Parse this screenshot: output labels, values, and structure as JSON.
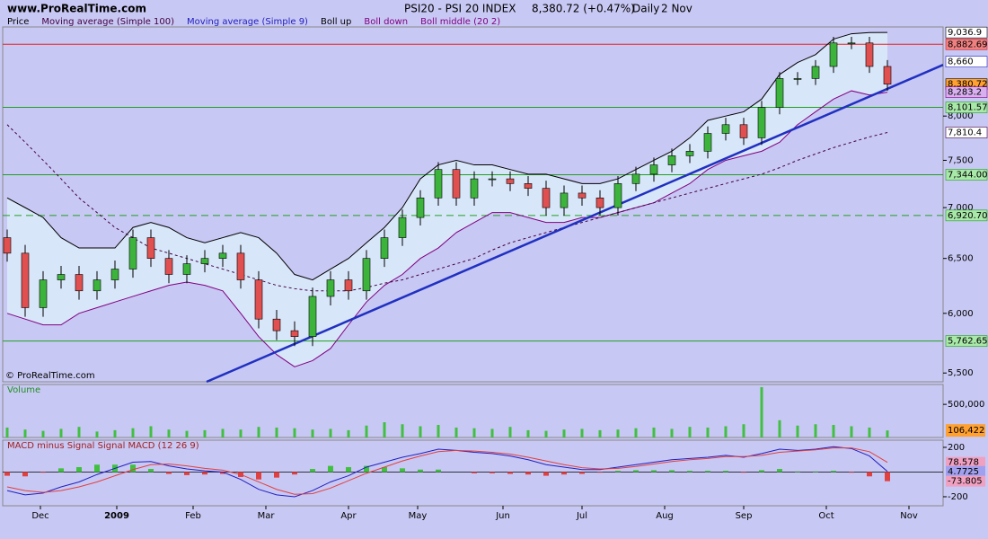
{
  "header": {
    "site": "www.ProRealTime.com",
    "instrument": "PSI20 - PSI 20 INDEX",
    "quote": "8,380.72 (+0.47%)",
    "period": "Daily",
    "date": "2 Nov",
    "watermark": "© ProRealTime.com"
  },
  "chart_data": [
    {
      "type": "candlestick",
      "scale": "log",
      "legend": [
        {
          "name": "Price",
          "color": "#000000"
        },
        {
          "name": "Moving average (Simple 100)",
          "color": "#400040"
        },
        {
          "name": "Moving average (Simple 9)",
          "color": "#2020c0"
        },
        {
          "name": "Boll up",
          "color": "#000000"
        },
        {
          "name": "Boll down",
          "color": "#800080"
        },
        {
          "name": "Boll middle (20 2)",
          "color": "#800080"
        }
      ],
      "categories": [
        null,
        null,
        null,
        null,
        null,
        null,
        null,
        null,
        null,
        null,
        null,
        null,
        null,
        null,
        null,
        null,
        null,
        null,
        null,
        null,
        null,
        null,
        null,
        null,
        null,
        null,
        null,
        null,
        null,
        null,
        null,
        null,
        null,
        null,
        null,
        null,
        null,
        null,
        null,
        null,
        null,
        null,
        null,
        null,
        null,
        null,
        null,
        null,
        null,
        null
      ],
      "xticks": [
        {
          "value": 1.85,
          "label": "Dec"
        },
        {
          "value": 6.1,
          "label": "2009"
        },
        {
          "value": 10.35,
          "label": "Feb"
        },
        {
          "value": 14.4,
          "label": "Mar"
        },
        {
          "value": 19,
          "label": "Apr"
        },
        {
          "value": 22.85,
          "label": "May"
        },
        {
          "value": 27.6,
          "label": "Jun"
        },
        {
          "value": 32,
          "label": "Jul"
        },
        {
          "value": 36.6,
          "label": "Aug"
        },
        {
          "value": 41,
          "label": "Sep"
        },
        {
          "value": 45.6,
          "label": "Oct"
        },
        {
          "value": 50.2,
          "label": "Nov"
        }
      ],
      "ylim": [
        5430,
        9110
      ],
      "yticks": [
        {
          "value": 5500,
          "label": "5,500"
        },
        {
          "value": 6000,
          "label": "6,000"
        },
        {
          "value": 6500,
          "label": "6,500"
        },
        {
          "value": 7000,
          "label": "7,000"
        },
        {
          "value": 7500,
          "label": "7,500"
        },
        {
          "value": 8000,
          "label": "8,000"
        }
      ],
      "open": [
        6700,
        6550,
        6050,
        6300,
        6350,
        6200,
        6300,
        6400,
        6700,
        6500,
        6350,
        6450,
        6500,
        6550,
        6300,
        5950,
        5850,
        5800,
        6150,
        6300,
        6200,
        6500,
        6700,
        6900,
        7100,
        7400,
        7100,
        7300,
        7300,
        7250,
        7200,
        7000,
        7150,
        7100,
        7000,
        7250,
        7350,
        7450,
        7550,
        7600,
        7800,
        7900,
        7750,
        8100,
        8450,
        8450,
        8600,
        8900,
        8900,
        8600
      ],
      "high": [
        6780,
        6630,
        6380,
        6430,
        6430,
        6380,
        6480,
        6780,
        6780,
        6580,
        6530,
        6580,
        6630,
        6630,
        6380,
        6030,
        5930,
        6230,
        6380,
        6380,
        6580,
        6780,
        6980,
        7180,
        7480,
        7480,
        7380,
        7380,
        7380,
        7330,
        7280,
        7230,
        7230,
        7180,
        7330,
        7430,
        7530,
        7630,
        7680,
        7880,
        7980,
        7980,
        8180,
        8530,
        8530,
        8680,
        8980,
        8980,
        8980,
        8680
      ],
      "low": [
        6470,
        5970,
        5970,
        6220,
        6120,
        6120,
        6220,
        6320,
        6420,
        6270,
        6270,
        6370,
        6420,
        6220,
        5870,
        5770,
        5720,
        5720,
        6070,
        6120,
        6120,
        6420,
        6620,
        6820,
        7020,
        7020,
        7020,
        7220,
        7170,
        7120,
        6920,
        6920,
        7020,
        6920,
        6920,
        7170,
        7270,
        7370,
        7470,
        7520,
        7720,
        7670,
        7670,
        8020,
        8370,
        8370,
        8520,
        8820,
        8520,
        8300
      ],
      "close": [
        6550,
        6050,
        6300,
        6350,
        6200,
        6300,
        6400,
        6700,
        6500,
        6350,
        6450,
        6500,
        6550,
        6300,
        5950,
        5850,
        5800,
        6150,
        6300,
        6200,
        6500,
        6700,
        6900,
        7100,
        7400,
        7100,
        7300,
        7300,
        7250,
        7200,
        7000,
        7150,
        7100,
        7000,
        7250,
        7350,
        7450,
        7550,
        7600,
        7800,
        7900,
        7750,
        8100,
        8450,
        8450,
        8600,
        8900,
        8900,
        8600,
        8381
      ],
      "up_color": "#3cb43c",
      "down_color": "#e05050",
      "series": [
        {
          "name": "Boll up",
          "color": "#000000",
          "values": [
            7100,
            7000,
            6900,
            6700,
            6600,
            6600,
            6600,
            6800,
            6850,
            6800,
            6700,
            6650,
            6700,
            6750,
            6700,
            6550,
            6350,
            6300,
            6400,
            6500,
            6650,
            6800,
            7000,
            7300,
            7450,
            7500,
            7450,
            7450,
            7400,
            7350,
            7350,
            7300,
            7250,
            7250,
            7300,
            7400,
            7500,
            7600,
            7750,
            7950,
            8000,
            8050,
            8200,
            8500,
            8650,
            8750,
            8950,
            9020,
            9035,
            9036.9
          ]
        },
        {
          "name": "Boll down",
          "color": "#800080",
          "values": [
            6000,
            5950,
            5900,
            5900,
            6000,
            6050,
            6100,
            6150,
            6200,
            6250,
            6280,
            6250,
            6200,
            6000,
            5800,
            5650,
            5550,
            5600,
            5700,
            5900,
            6100,
            6250,
            6350,
            6500,
            6600,
            6750,
            6850,
            6950,
            6950,
            6900,
            6850,
            6850,
            6900,
            6900,
            6950,
            7000,
            7050,
            7150,
            7250,
            7400,
            7500,
            7550,
            7600,
            7700,
            7900,
            8050,
            8200,
            8300,
            8250,
            8283.2
          ]
        },
        {
          "name": "Moving average (Simple 100)",
          "color": "#400040",
          "dashed": true,
          "values": [
            7900,
            7700,
            7500,
            7300,
            7100,
            6950,
            6800,
            6700,
            6600,
            6550,
            6500,
            6450,
            6400,
            6350,
            6300,
            6250,
            6220,
            6200,
            6200,
            6200,
            6230,
            6270,
            6300,
            6350,
            6400,
            6450,
            6500,
            6580,
            6650,
            6700,
            6750,
            6800,
            6850,
            6900,
            6950,
            7000,
            7050,
            7100,
            7150,
            7200,
            7250,
            7300,
            7350,
            7420,
            7500,
            7570,
            7640,
            7700,
            7760,
            7810.4
          ]
        }
      ],
      "band_fill": "#d8e6fa",
      "trendline": {
        "color": "#2030c0",
        "x": [
          11.1,
          52.1
        ],
        "y": [
          5430,
          8620
        ]
      },
      "levels": [
        {
          "value": 9036.9,
          "label": "9,036.9",
          "box": "#ffffff",
          "line": "none",
          "color": "#000000"
        },
        {
          "value": 8882.69,
          "label": "8,882.69",
          "box": "#f08080",
          "line": "solid",
          "color": "#e02020"
        },
        {
          "value": 8660,
          "label": "8,660",
          "box": "#ffffff",
          "line": "none",
          "color": "#2020c0"
        },
        {
          "value": 8380.72,
          "label": "8,380.72",
          "box": "#ffa030",
          "line": "none",
          "color": "#000000"
        },
        {
          "value": 8283.2,
          "label": "8,283.2",
          "box": "#d8b0f0",
          "line": "none",
          "color": "#800080"
        },
        {
          "value": 8101.57,
          "label": "8,101.57",
          "box": "#a8e8a8",
          "line": "solid",
          "color": "#20a020"
        },
        {
          "value": 7810.4,
          "label": "7,810.4",
          "box": "#ffffff",
          "line": "none",
          "color": "#400040"
        },
        {
          "value": 7344.0,
          "label": "7,344.00",
          "box": "#a8e8a8",
          "line": "solid",
          "color": "#20a020"
        },
        {
          "value": 6920.7,
          "label": "6,920.70",
          "box": "#a8e8a8",
          "line": "dashed",
          "color": "#20a020"
        },
        {
          "value": 5762.65,
          "label": "5,762.65",
          "box": "#a8e8a8",
          "line": "solid",
          "color": "#20a020"
        }
      ]
    },
    {
      "type": "bar",
      "title": "Volume",
      "color": "#40c040",
      "values": [
        150000,
        120000,
        100000,
        130000,
        160000,
        90000,
        110000,
        140000,
        170000,
        120000,
        100000,
        110000,
        130000,
        120000,
        160000,
        150000,
        140000,
        120000,
        130000,
        110000,
        180000,
        230000,
        200000,
        170000,
        190000,
        150000,
        140000,
        130000,
        160000,
        110000,
        100000,
        120000,
        130000,
        110000,
        120000,
        140000,
        150000,
        130000,
        160000,
        150000,
        170000,
        200000,
        760000,
        260000,
        180000,
        200000,
        190000,
        170000,
        150000,
        106422
      ],
      "ylim": [
        0,
        800000
      ],
      "yticks": [
        {
          "value": 500000,
          "label": "500,000"
        }
      ],
      "last_label": {
        "value": 106422,
        "label": "106,422"
      }
    },
    {
      "type": "macd",
      "title": "MACD minus Signal Signal MACD (12 26 9)",
      "ylim": [
        -273,
        258
      ],
      "yticks": [
        200,
        -200
      ],
      "series": [
        {
          "name": "MACD",
          "color": "#2020c0",
          "values": [
            -150,
            -185,
            -170,
            -120,
            -80,
            -20,
            30,
            80,
            85,
            50,
            25,
            10,
            0,
            -60,
            -140,
            -185,
            -200,
            -150,
            -80,
            -30,
            40,
            80,
            120,
            150,
            185,
            175,
            160,
            150,
            130,
            100,
            60,
            40,
            20,
            20,
            40,
            60,
            80,
            100,
            110,
            120,
            135,
            120,
            150,
            185,
            175,
            185,
            205,
            190,
            130,
            4.7725
          ]
        },
        {
          "name": "Signal",
          "color": "#e04040",
          "values": [
            -120,
            -150,
            -165,
            -150,
            -120,
            -80,
            -30,
            20,
            60,
            65,
            50,
            30,
            15,
            -20,
            -80,
            -140,
            -180,
            -175,
            -130,
            -70,
            -10,
            40,
            90,
            130,
            165,
            175,
            170,
            160,
            145,
            120,
            90,
            60,
            35,
            25,
            30,
            45,
            65,
            85,
            100,
            110,
            125,
            125,
            135,
            160,
            170,
            180,
            195,
            195,
            165,
            78.578
          ]
        }
      ],
      "histogram": {
        "name": "MACD minus Signal",
        "up_color": "#40c040",
        "down_color": "#e04040",
        "values": [
          -30,
          -35,
          -5,
          30,
          40,
          60,
          60,
          60,
          25,
          -15,
          -25,
          -20,
          -15,
          -40,
          -60,
          -45,
          -20,
          25,
          50,
          40,
          50,
          40,
          30,
          20,
          20,
          0,
          -10,
          -10,
          -15,
          -20,
          -30,
          -20,
          -15,
          -5,
          10,
          15,
          15,
          15,
          10,
          10,
          10,
          -5,
          15,
          25,
          5,
          5,
          10,
          -5,
          -35,
          -73.805
        ]
      },
      "last_labels": [
        {
          "value": 78.578,
          "label": "78.578",
          "box": "#f0a0c0"
        },
        {
          "value": 4.7725,
          "label": "4.7725",
          "box": "#a0a0f0"
        },
        {
          "value": -73.805,
          "label": "-73.805",
          "box": "#f0a0c0"
        }
      ]
    }
  ]
}
